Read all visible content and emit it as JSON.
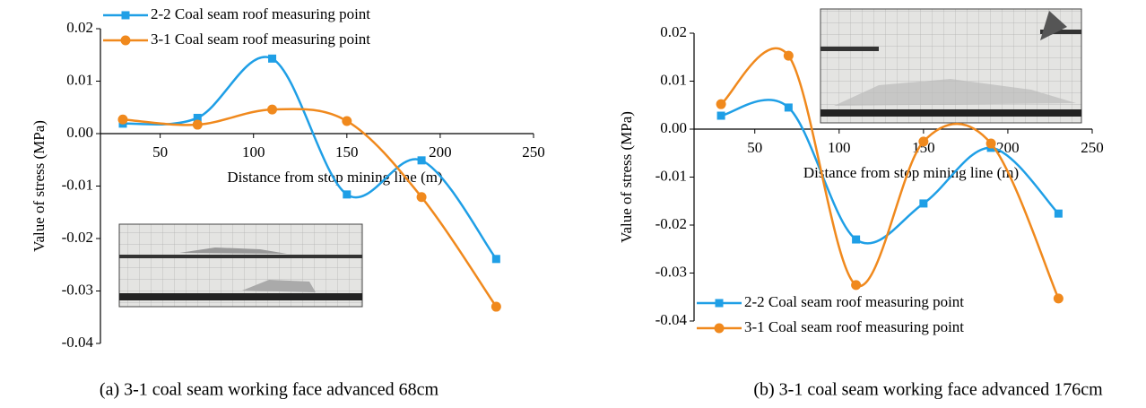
{
  "chart_data": [
    {
      "type": "line",
      "caption": "(a) 3-1 coal seam working face advanced 68cm",
      "xlabel": "Distance from stop mining line (m)",
      "ylabel": "Value of stress (MPa)",
      "x": [
        30,
        70,
        110,
        150,
        190,
        230
      ],
      "series": [
        {
          "name": "2-2 Coal seam roof measuring point",
          "color": "#1f9fe6",
          "marker": "square",
          "values": [
            0.0019,
            0.003,
            0.0143,
            -0.0116,
            -0.0051,
            -0.0239
          ]
        },
        {
          "name": "3-1 Coal seam roof measuring point",
          "color": "#f0891d",
          "marker": "circle",
          "values": [
            0.0027,
            0.0017,
            0.0046,
            0.0024,
            -0.0121,
            -0.033
          ]
        }
      ],
      "xlim": [
        18,
        250
      ],
      "xticks": [
        50,
        100,
        150,
        200,
        250
      ],
      "ylim": [
        -0.04,
        0.02
      ],
      "yticks": [
        0.02,
        0.01,
        {
          "value": 0,
          "label": "0.00"
        },
        -0.01,
        -0.02,
        -0.03,
        -0.04
      ],
      "legend": "upper left"
    },
    {
      "type": "line",
      "caption": "(b) 3-1 coal seam working face advanced 176cm",
      "xlabel": "Distance from stop mining line (m)",
      "ylabel": "Value of stress (MPa)",
      "x": [
        30,
        70,
        110,
        150,
        190,
        230
      ],
      "series": [
        {
          "name": "2-2 Coal seam roof measuring point",
          "color": "#1f9fe6",
          "marker": "square",
          "values": [
            0.0028,
            0.0045,
            -0.023,
            -0.0155,
            -0.0039,
            -0.0176
          ]
        },
        {
          "name": "3-1 Coal seam roof measuring point",
          "color": "#f0891d",
          "marker": "circle",
          "values": [
            0.0052,
            0.0153,
            -0.0325,
            -0.0026,
            -0.003,
            -0.0353
          ]
        }
      ],
      "xlim": [
        14,
        250
      ],
      "xticks": [
        50,
        100,
        150,
        200,
        250
      ],
      "ylim": [
        -0.04,
        0.02
      ],
      "yticks": [
        0.02,
        0.01,
        {
          "value": 0,
          "label": "0.00"
        },
        -0.01,
        -0.02,
        -0.03,
        -0.04
      ],
      "legend": "lower left"
    }
  ]
}
